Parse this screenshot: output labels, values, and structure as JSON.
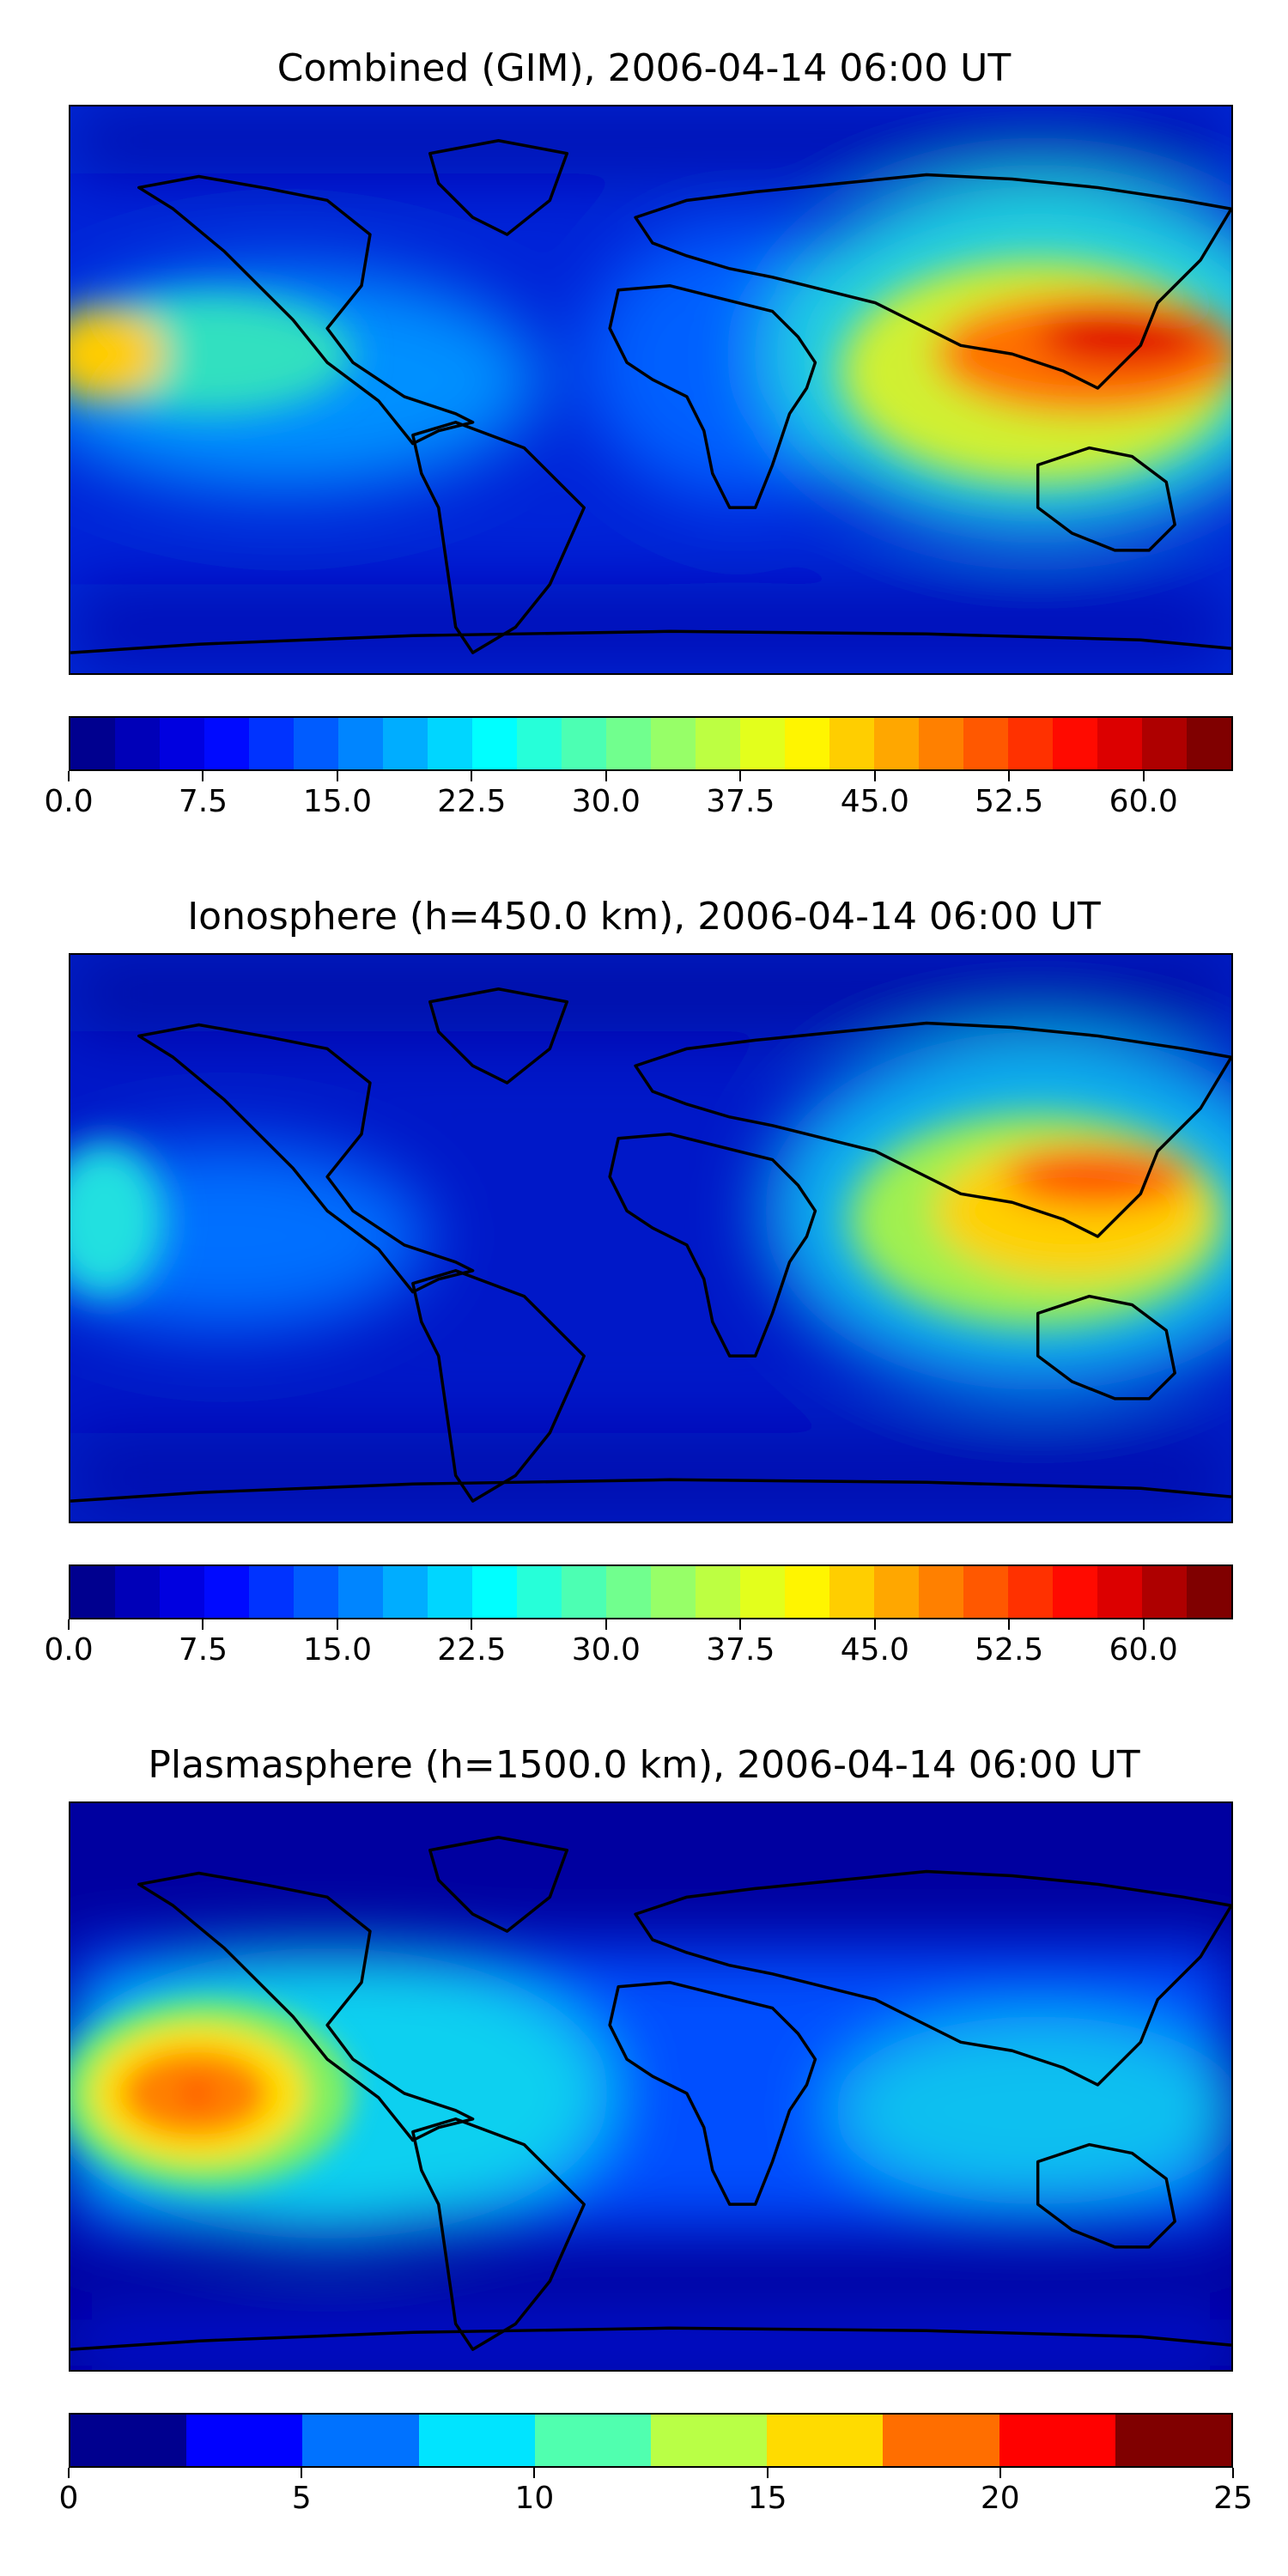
{
  "panels": [
    {
      "title": "Combined (GIM), 2006-04-14 06:00 UT",
      "colorbar": {
        "min": 0,
        "max": 65,
        "levels": 26,
        "step": 2.5,
        "ticks": [
          0,
          7.5,
          15,
          22.5,
          30,
          37.5,
          45,
          52.5,
          60
        ],
        "tick_labels": [
          "0.0",
          "7.5",
          "15.0",
          "22.5",
          "30.0",
          "37.5",
          "45.0",
          "52.5",
          "60.0"
        ]
      }
    },
    {
      "title": "Ionosphere  (h=450.0 km), 2006-04-14 06:00 UT",
      "colorbar": {
        "min": 0,
        "max": 65,
        "levels": 26,
        "step": 2.5,
        "ticks": [
          0,
          7.5,
          15,
          22.5,
          30,
          37.5,
          45,
          52.5,
          60
        ],
        "tick_labels": [
          "0.0",
          "7.5",
          "15.0",
          "22.5",
          "30.0",
          "37.5",
          "45.0",
          "52.5",
          "60.0"
        ]
      }
    },
    {
      "title": "Plasmasphere (h=1500.0 km), 2006-04-14 06:00 UT",
      "colorbar": {
        "min": 0,
        "max": 25,
        "levels": 10,
        "step": 2.5,
        "ticks": [
          0,
          5,
          10,
          15,
          20,
          25
        ],
        "tick_labels": [
          "0",
          "5",
          "10",
          "15",
          "20",
          "25"
        ]
      }
    }
  ],
  "chart_data": [
    {
      "type": "heatmap",
      "title": "Combined (GIM), 2006-04-14 06:00 UT",
      "projection": "global lon/lat map with coastlines",
      "colormap": "jet",
      "color_range": [
        0,
        65
      ],
      "features": [
        {
          "region": "Southeast Asia / western Pacific",
          "level": "peak ~62"
        },
        {
          "region": "Eastern Pacific (left edge)",
          "level": "~45-50"
        },
        {
          "region": "Indian Ocean / Australia",
          "level": "~35-45"
        },
        {
          "region": "Atlantic / polar regions",
          "level": "~2-10"
        }
      ]
    },
    {
      "type": "heatmap",
      "title": "Ionosphere  (h=450.0 km), 2006-04-14 06:00 UT",
      "projection": "global lon/lat map with coastlines",
      "colormap": "jet",
      "color_range": [
        0,
        65
      ],
      "features": [
        {
          "region": "Southeast Asia / western Pacific",
          "level": "peak ~52"
        },
        {
          "region": "Eastern Pacific (left edge)",
          "level": "~30"
        },
        {
          "region": "Americas / Atlantic",
          "level": "~2-8"
        }
      ]
    },
    {
      "type": "heatmap",
      "title": "Plasmasphere (h=1500.0 km), 2006-04-14 06:00 UT",
      "projection": "global lon/lat map with coastlines",
      "colormap": "jet",
      "color_range": [
        0,
        25
      ],
      "features": [
        {
          "region": "Eastern Pacific",
          "level": "peak ~21"
        },
        {
          "region": "Tropical belt",
          "level": "~7.5-12.5"
        },
        {
          "region": "High latitudes",
          "level": "~0-2.5"
        }
      ]
    }
  ],
  "colors": {
    "jet_stops": [
      "#00008f",
      "#0000ff",
      "#00ffff",
      "#ffff00",
      "#ff0000",
      "#800000"
    ]
  },
  "icons": [
    "coastline-outline"
  ]
}
